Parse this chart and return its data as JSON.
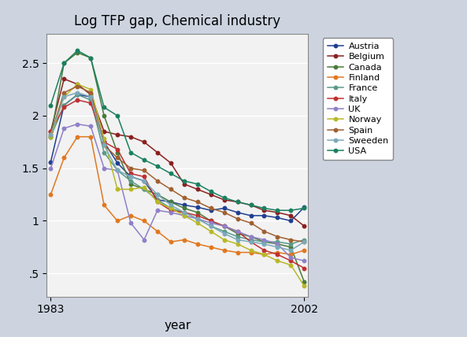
{
  "title": "Log TFP gap, Chemical industry",
  "xlabel": "year",
  "background_color": "#cdd4e0",
  "plot_background": "#f2f2f2",
  "years": [
    1983,
    1984,
    1985,
    1986,
    1987,
    1988,
    1989,
    1990,
    1991,
    1992,
    1993,
    1994,
    1995,
    1996,
    1997,
    1998,
    1999,
    2000,
    2001,
    2002
  ],
  "series": {
    "Austria": {
      "color": "#1f3f8f",
      "data": [
        1.56,
        2.1,
        2.2,
        2.18,
        1.75,
        1.55,
        1.42,
        1.38,
        1.2,
        1.18,
        1.15,
        1.13,
        1.1,
        1.12,
        1.08,
        1.05,
        1.05,
        1.03,
        1.0,
        1.13
      ]
    },
    "Belgium": {
      "color": "#8b2020",
      "data": [
        1.85,
        2.35,
        2.3,
        2.2,
        1.85,
        1.82,
        1.8,
        1.75,
        1.65,
        1.55,
        1.35,
        1.3,
        1.25,
        1.2,
        1.18,
        1.15,
        1.1,
        1.08,
        1.05,
        0.95
      ]
    },
    "Canada": {
      "color": "#4a7a3a",
      "data": [
        1.8,
        2.5,
        2.6,
        2.55,
        2.0,
        1.65,
        1.35,
        1.3,
        1.25,
        1.18,
        1.12,
        1.08,
        1.0,
        0.95,
        0.88,
        0.85,
        0.8,
        0.78,
        0.75,
        0.42
      ]
    },
    "Finland": {
      "color": "#e07820",
      "data": [
        1.25,
        1.6,
        1.8,
        1.8,
        1.15,
        1.0,
        1.05,
        1.0,
        0.9,
        0.8,
        0.82,
        0.78,
        0.75,
        0.72,
        0.7,
        0.7,
        0.68,
        0.7,
        0.68,
        0.72
      ]
    },
    "France": {
      "color": "#5a9a8a",
      "data": [
        1.8,
        2.1,
        2.2,
        2.15,
        1.65,
        1.48,
        1.38,
        1.3,
        1.2,
        1.12,
        1.08,
        1.02,
        0.95,
        0.9,
        0.85,
        0.82,
        0.8,
        0.8,
        0.78,
        0.82
      ]
    },
    "Italy": {
      "color": "#c03030",
      "data": [
        1.85,
        2.08,
        2.15,
        2.12,
        1.75,
        1.68,
        1.45,
        1.42,
        1.18,
        1.1,
        1.08,
        1.05,
        1.0,
        0.95,
        0.9,
        0.8,
        0.72,
        0.68,
        0.62,
        0.55
      ]
    },
    "UK": {
      "color": "#9080c8",
      "data": [
        1.5,
        1.88,
        1.92,
        1.9,
        1.5,
        1.48,
        0.98,
        0.82,
        1.1,
        1.08,
        1.05,
        1.02,
        0.98,
        0.95,
        0.9,
        0.85,
        0.82,
        0.78,
        0.65,
        0.62
      ]
    },
    "Norway": {
      "color": "#b8b828",
      "data": [
        1.8,
        2.18,
        2.3,
        2.25,
        1.78,
        1.3,
        1.3,
        1.32,
        1.18,
        1.12,
        1.05,
        0.98,
        0.9,
        0.82,
        0.78,
        0.72,
        0.68,
        0.62,
        0.58,
        0.38
      ]
    },
    "Spain": {
      "color": "#a06030",
      "data": [
        1.82,
        2.22,
        2.28,
        2.22,
        1.72,
        1.6,
        1.5,
        1.48,
        1.38,
        1.3,
        1.22,
        1.18,
        1.12,
        1.08,
        1.02,
        0.98,
        0.9,
        0.85,
        0.82,
        0.8
      ]
    },
    "Sweeden": {
      "color": "#7aaaba",
      "data": [
        1.82,
        2.18,
        2.22,
        2.18,
        1.72,
        1.48,
        1.42,
        1.38,
        1.25,
        1.15,
        1.08,
        1.02,
        0.95,
        0.88,
        0.82,
        0.8,
        0.78,
        0.75,
        0.72,
        0.8
      ]
    },
    "USA": {
      "color": "#1a8060",
      "data": [
        2.1,
        2.5,
        2.62,
        2.55,
        2.08,
        2.0,
        1.65,
        1.58,
        1.52,
        1.45,
        1.38,
        1.35,
        1.28,
        1.22,
        1.18,
        1.15,
        1.12,
        1.1,
        1.1,
        1.12
      ]
    }
  },
  "yticks": [
    0.5,
    1.0,
    1.5,
    2.0,
    2.5
  ],
  "ytick_labels": [
    ".5",
    "1",
    "1.5",
    "2",
    "2.5"
  ],
  "ylim": [
    0.28,
    2.78
  ],
  "xlim_start": 1983,
  "xlim_end": 2002
}
